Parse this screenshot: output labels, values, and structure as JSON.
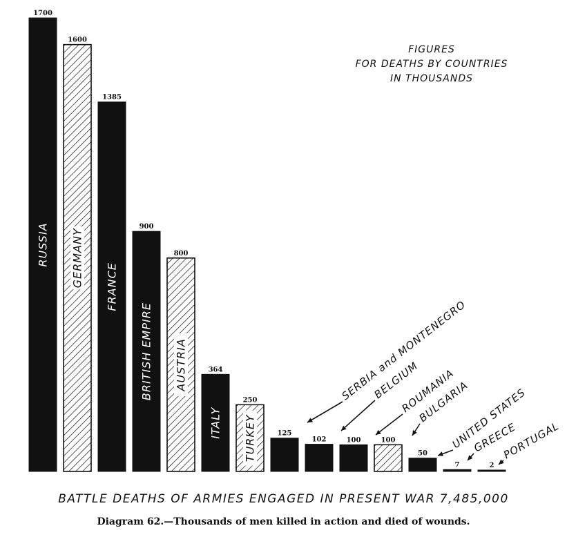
{
  "chart_data": {
    "type": "bar",
    "title": "BATTLE DEATHS OF ARMIES ENGAGED IN PRESENT WAR 7,485,000",
    "caption": "Diagram 62.—Thousands of men killed in action and died of wounds.",
    "note": [
      "FIGURES",
      "FOR DEATHS BY COUNTRIES",
      "IN THOUSANDS"
    ],
    "ylim": [
      0,
      1700
    ],
    "categories": [
      "RUSSIA",
      "GERMANY",
      "FRANCE",
      "BRITISH EMPIRE",
      "AUSTRIA",
      "ITALY",
      "TURKEY",
      "SERBIA and MONTENEGRO",
      "BELGIUM",
      "ROUMANIA",
      "BULGARIA",
      "UNITED STATES",
      "GREECE",
      "PORTUGAL"
    ],
    "values": [
      1700,
      1600,
      1385,
      900,
      800,
      364,
      250,
      125,
      102,
      100,
      100,
      50,
      7,
      2
    ],
    "value_labels": [
      "1700",
      "1600",
      "1385",
      "900",
      "800",
      "364",
      "250",
      "125",
      "102",
      "100",
      "100",
      "50",
      "7",
      "2"
    ],
    "fill": [
      "solid",
      "hatched",
      "solid",
      "solid",
      "hatched",
      "solid",
      "hatched",
      "solid",
      "solid",
      "solid",
      "hatched",
      "solid",
      "solid",
      "solid"
    ],
    "colors": {
      "ink": "#111111",
      "paper": "#ffffff"
    }
  }
}
